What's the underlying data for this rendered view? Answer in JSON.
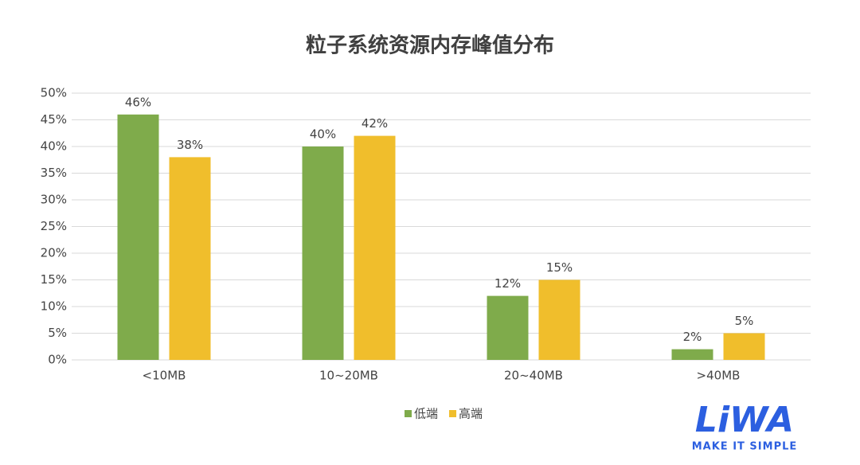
{
  "chart_data": {
    "type": "bar",
    "title": "粒子系统资源内存峰值分布",
    "categories": [
      "<10MB",
      "10~20MB",
      "20~40MB",
      ">40MB"
    ],
    "series": [
      {
        "name": "低端",
        "color": "#7fab4b",
        "values": [
          46,
          40,
          12,
          2
        ],
        "value_labels": [
          "46%",
          "40%",
          "12%",
          "2%"
        ]
      },
      {
        "name": "高端",
        "color": "#f0be2c",
        "values": [
          38,
          42,
          15,
          5
        ],
        "value_labels": [
          "38%",
          "42%",
          "15%",
          "5%"
        ]
      }
    ],
    "ylim": [
      0,
      50
    ],
    "yticks": [
      {
        "value": 0,
        "label": "0%"
      },
      {
        "value": 5,
        "label": "5%"
      },
      {
        "value": 10,
        "label": "10%"
      },
      {
        "value": 15,
        "label": "15%"
      },
      {
        "value": 20,
        "label": "20%"
      },
      {
        "value": 25,
        "label": "25%"
      },
      {
        "value": 30,
        "label": "30%"
      },
      {
        "value": 35,
        "label": "35%"
      },
      {
        "value": 40,
        "label": "40%"
      },
      {
        "value": 45,
        "label": "45%"
      },
      {
        "value": 50,
        "label": "50%"
      }
    ],
    "grid": true,
    "legend": "bottom"
  },
  "logo": {
    "mark": "LiWA",
    "tagline": "MAKE IT SIMPLE"
  }
}
